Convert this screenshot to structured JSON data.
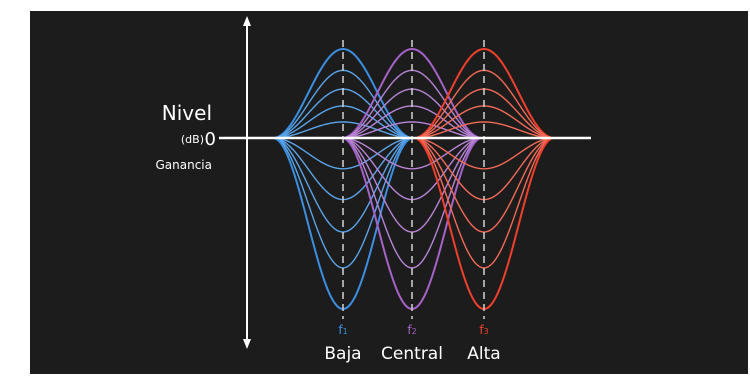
{
  "y_axis": {
    "title": "Nivel",
    "unit": "(dB)",
    "zero": "0",
    "gain": "Ganancia"
  },
  "bands": [
    {
      "name": "Baja",
      "freq_symbol": "f",
      "freq_index": "1",
      "color": "#3b8fe0",
      "color_light": "#5ba4ea"
    },
    {
      "name": "Central",
      "freq_symbol": "f",
      "freq_index": "2",
      "color": "#a563c9",
      "color_light": "#b884d6"
    },
    {
      "name": "Alta",
      "freq_symbol": "f",
      "freq_index": "3",
      "color": "#f0402c",
      "color_light": "#f36a57"
    }
  ],
  "gain_levels": [
    1,
    0.76,
    0.55,
    0.36,
    0.18,
    -0.18,
    -0.36,
    -0.55,
    -0.76,
    -1
  ],
  "colors": {
    "background": "#1c1c1c",
    "axis": "#ffffff",
    "center_line": "#c8c8c8"
  }
}
